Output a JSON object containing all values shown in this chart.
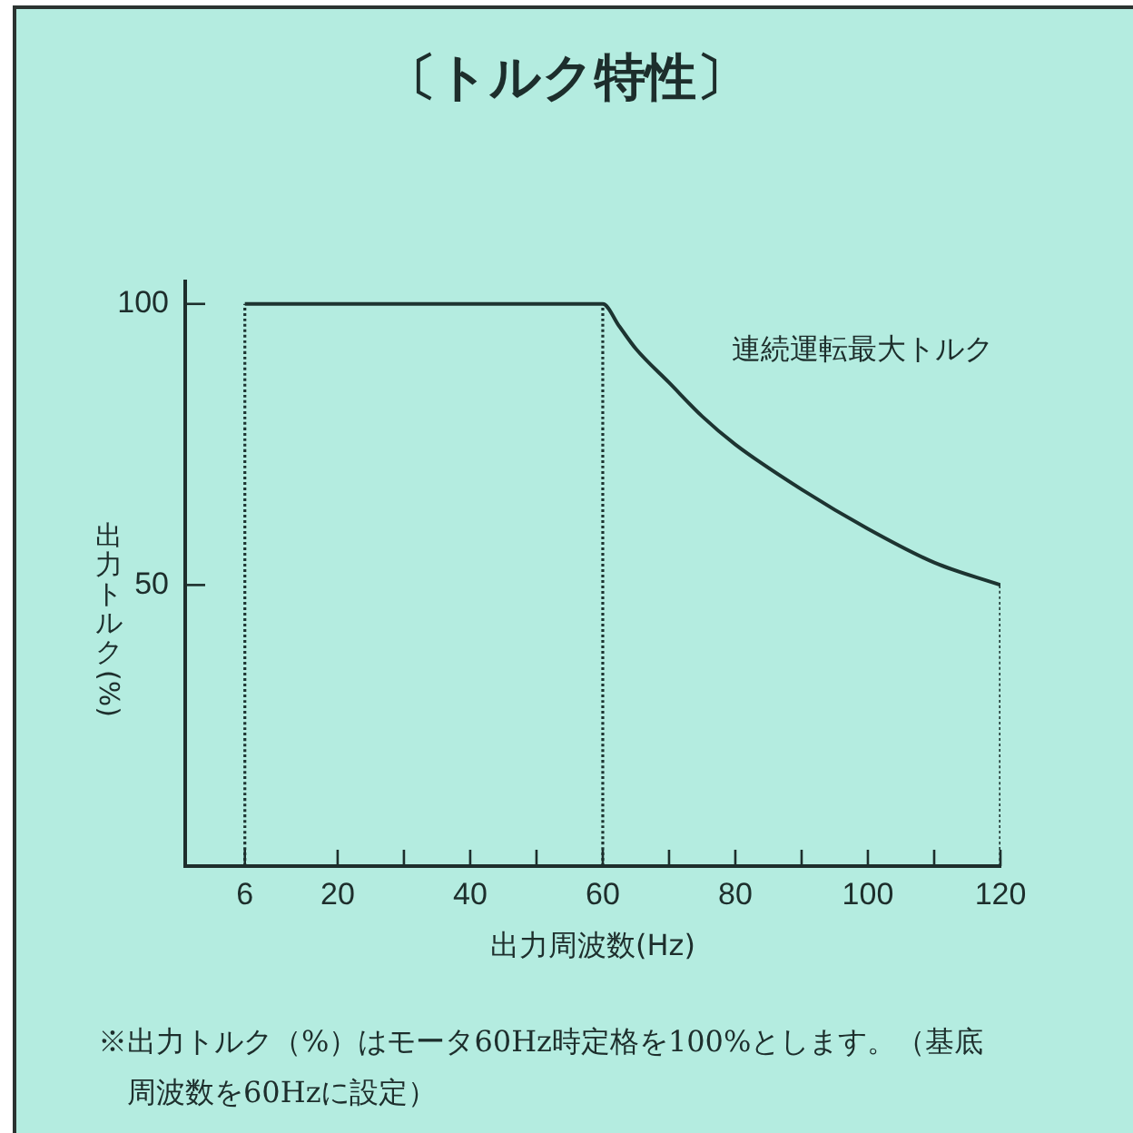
{
  "chart_data": {
    "type": "line",
    "title": "〔トルク特性〕",
    "xlabel": "出力周波数(Hz)",
    "ylabel": "出力トルク(%)",
    "xlim": [
      -3,
      120
    ],
    "xticks": [
      6,
      20,
      {
        "value": 30,
        "label": null
      },
      40,
      {
        "value": 50,
        "label": null
      },
      60,
      {
        "value": 70,
        "label": null
      },
      80,
      {
        "value": 90,
        "label": null
      },
      100,
      {
        "value": 110,
        "label": null
      },
      120
    ],
    "ylim": [
      0,
      104
    ],
    "yticks": [
      50,
      100
    ],
    "series": [
      {
        "name": "連続運転最大トルク",
        "color": "#1d3431",
        "x": [
          6,
          60,
          62.5,
          65,
          70,
          75,
          80,
          90,
          100,
          110,
          120
        ],
        "values": [
          100,
          100,
          96,
          92,
          86,
          80,
          75,
          67,
          60,
          54,
          50
        ]
      },
      {
        "color": "#1d3431",
        "line_style": "dotted",
        "x": [
          6,
          6
        ],
        "values": [
          0,
          100
        ]
      },
      {
        "color": "#1d3431",
        "line_style": "dotted",
        "x": [
          60,
          60
        ],
        "values": [
          0,
          100
        ]
      },
      {
        "color": "#1d3431",
        "line_style": "dotted",
        "x": [
          120,
          120
        ],
        "values": [
          0,
          50
        ]
      }
    ],
    "annotations": [
      "※出力トルク（%）はモータ60Hz時定格を100%とします。（基底周波数を60Hzに設定）"
    ]
  }
}
